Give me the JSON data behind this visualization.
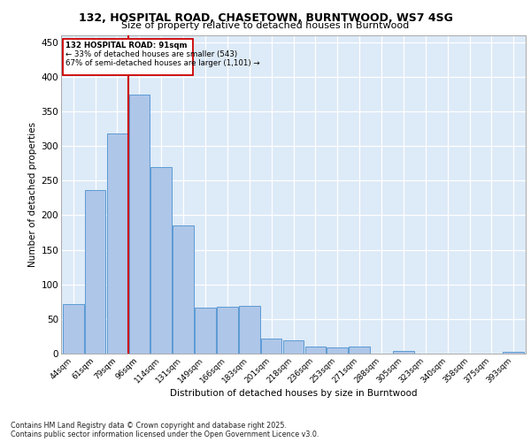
{
  "title1": "132, HOSPITAL ROAD, CHASETOWN, BURNTWOOD, WS7 4SG",
  "title2": "Size of property relative to detached houses in Burntwood",
  "xlabel": "Distribution of detached houses by size in Burntwood",
  "ylabel": "Number of detached properties",
  "categories": [
    "44sqm",
    "61sqm",
    "79sqm",
    "96sqm",
    "114sqm",
    "131sqm",
    "149sqm",
    "166sqm",
    "183sqm",
    "201sqm",
    "218sqm",
    "236sqm",
    "253sqm",
    "271sqm",
    "288sqm",
    "305sqm",
    "323sqm",
    "340sqm",
    "358sqm",
    "375sqm",
    "393sqm"
  ],
  "values": [
    72,
    237,
    318,
    375,
    270,
    185,
    67,
    68,
    69,
    22,
    19,
    10,
    9,
    10,
    0,
    4,
    0,
    0,
    0,
    0,
    3
  ],
  "bar_color": "#aec6e8",
  "bar_edge_color": "#5b9bd5",
  "vline_x": 2.5,
  "vline_color": "#cc0000",
  "annotation_title": "132 HOSPITAL ROAD: 91sqm",
  "annotation_line1": "← 33% of detached houses are smaller (543)",
  "annotation_line2": "67% of semi-detached houses are larger (1,101) →",
  "annotation_box_edge": "#cc0000",
  "ylim": [
    0,
    460
  ],
  "yticks": [
    0,
    50,
    100,
    150,
    200,
    250,
    300,
    350,
    400,
    450
  ],
  "footer1": "Contains HM Land Registry data © Crown copyright and database right 2025.",
  "footer2": "Contains public sector information licensed under the Open Government Licence v3.0.",
  "plot_bg_color": "#ddeaf7"
}
